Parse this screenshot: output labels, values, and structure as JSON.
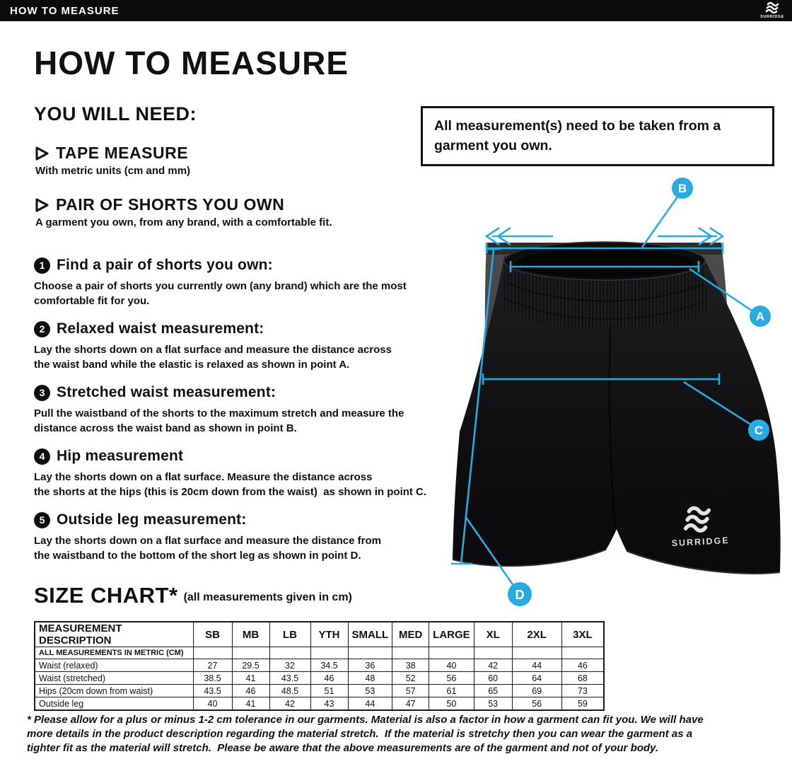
{
  "topbar": {
    "title": "HOW TO MEASURE",
    "brand": "SURRIDGE"
  },
  "heading": "HOW TO MEASURE",
  "you_will_need": {
    "heading": "YOU WILL NEED:",
    "items": [
      {
        "label": "TAPE MEASURE",
        "detail": "With metric units (cm and mm)"
      },
      {
        "label": "PAIR OF SHORTS YOU OWN",
        "detail": "A garment you own, from any brand, with a comfortable fit."
      }
    ]
  },
  "notice": "All measurement(s) need to be taken from a garment you own.",
  "steps": [
    {
      "num": "1",
      "title": "Find a pair of shorts you own:",
      "lines": [
        "Choose a pair of shorts you currently own (any brand) which are the most",
        "comfortable fit for you."
      ]
    },
    {
      "num": "2",
      "title": "Relaxed waist measurement:",
      "lines": [
        "Lay the shorts down on a flat surface and measure the distance across",
        "the waist band while the elastic is relaxed as shown in point A."
      ]
    },
    {
      "num": "3",
      "title": "Stretched waist measurement:",
      "lines": [
        "Pull the waistband of the shorts to the maximum stretch and measure the",
        "distance across the waist band as shown in point B."
      ]
    },
    {
      "num": "4",
      "title": "Hip measurement",
      "lines": [
        "Lay the shorts down on a flat surface. Measure the distance across",
        "the shorts at the hips (this is 20cm down from the waist)  as shown in point C."
      ]
    },
    {
      "num": "5",
      "title": "Outside leg measurement:",
      "lines": [
        "Lay the shorts down on a flat surface and measure the distance from",
        "the waistband to the bottom of the short leg as shown in point D."
      ]
    }
  ],
  "diagram": {
    "labels": {
      "a": "A",
      "b": "B",
      "c": "C",
      "d": "D"
    },
    "brand": "SURRIDGE",
    "accent_color": "#29ABE2",
    "shorts_color": "#111114",
    "backdrop_color": "#454548"
  },
  "size_chart": {
    "heading": "SIZE CHART*",
    "subheading": "(all measurements given in cm)",
    "table": {
      "columns": [
        "MEASUREMENT DESCRIPTION",
        "SB",
        "MB",
        "LB",
        "YTH",
        "SMALL",
        "MED",
        "LARGE",
        "XL",
        "2XL",
        "3XL"
      ],
      "note_row": "ALL MEASUREMENTS IN METRIC (CM)",
      "rows": [
        {
          "label": "Waist (relaxed)",
          "values": [
            "27",
            "29.5",
            "32",
            "34.5",
            "36",
            "38",
            "40",
            "42",
            "44",
            "46"
          ]
        },
        {
          "label": "Waist (stretched)",
          "values": [
            "38.5",
            "41",
            "43.5",
            "46",
            "48",
            "52",
            "56",
            "60",
            "64",
            "68"
          ]
        },
        {
          "label": "Hips (20cm down from waist)",
          "values": [
            "43.5",
            "46",
            "48.5",
            "51",
            "53",
            "57",
            "61",
            "65",
            "69",
            "73"
          ]
        },
        {
          "label": "Outside leg",
          "values": [
            "40",
            "41",
            "42",
            "43",
            "44",
            "47",
            "50",
            "53",
            "56",
            "59"
          ]
        }
      ]
    }
  },
  "footnote": {
    "lines": [
      "* Please allow for a plus or minus 1-2 cm tolerance in our garments. Material is also a factor in how a garment can fit you. We will have",
      "more details in the product description regarding the material stretch.  If the material is stretchy then you can wear the garment as a",
      "tighter fit as the material will stretch.  Please be aware that the above measurements are of the garment and not of your body."
    ]
  }
}
